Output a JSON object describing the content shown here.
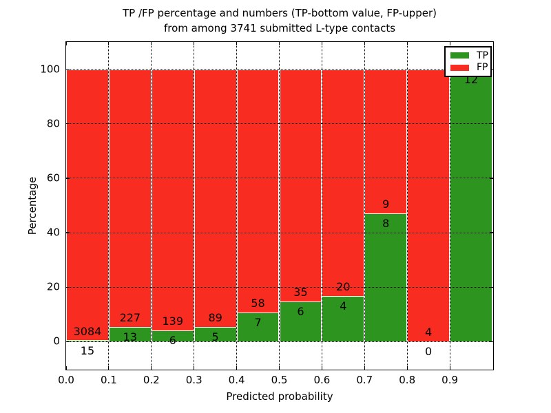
{
  "title": {
    "line1": "TP /FP percentage and numbers (TP-bottom value, FP-upper)",
    "line2": "from among 3741 submitted L-type contacts"
  },
  "axes": {
    "xlabel": "Predicted probability",
    "ylabel": "Percentage"
  },
  "legend": {
    "items": [
      {
        "label": "TP",
        "color": "#2D9420"
      },
      {
        "label": "FP",
        "color": "#F92C21"
      }
    ]
  },
  "colors": {
    "tp_bar": "#2D9420",
    "fp_bar": "#F92C21",
    "bar_edge": "#ffffff",
    "grid": "#000000",
    "text": "#000000"
  },
  "chart_data": {
    "type": "bar",
    "stacked": true,
    "normalized": "each bin scaled to 100%",
    "title": "TP /FP percentage and numbers (TP-bottom value, FP-upper) from among 3741 submitted L-type contacts",
    "xlabel": "Predicted probability",
    "ylabel": "Percentage",
    "xlim": [
      0.0,
      1.0
    ],
    "ylim": [
      -10,
      110
    ],
    "yticks": [
      0,
      20,
      40,
      60,
      80,
      100
    ],
    "xtick_labels": [
      "0.0",
      "0.1",
      "0.2",
      "0.3",
      "0.4",
      "0.5",
      "0.6",
      "0.7",
      "0.8",
      "0.9"
    ],
    "grid": "dotted, both axes",
    "legend_position": "upper right",
    "total_contacts": 3741,
    "bins": [
      {
        "x_range": [
          0.0,
          0.1
        ],
        "tp": 15,
        "fp": 3084
      },
      {
        "x_range": [
          0.1,
          0.2
        ],
        "tp": 13,
        "fp": 227
      },
      {
        "x_range": [
          0.2,
          0.3
        ],
        "tp": 6,
        "fp": 139
      },
      {
        "x_range": [
          0.3,
          0.4
        ],
        "tp": 5,
        "fp": 89
      },
      {
        "x_range": [
          0.4,
          0.5
        ],
        "tp": 7,
        "fp": 58
      },
      {
        "x_range": [
          0.5,
          0.6
        ],
        "tp": 6,
        "fp": 35
      },
      {
        "x_range": [
          0.6,
          0.7
        ],
        "tp": 4,
        "fp": 20
      },
      {
        "x_range": [
          0.7,
          0.8
        ],
        "tp": 8,
        "fp": 9
      },
      {
        "x_range": [
          0.8,
          0.9
        ],
        "tp": 0,
        "fp": 4
      },
      {
        "x_range": [
          0.9,
          1.0
        ],
        "tp": 12,
        "fp": 0,
        "fp_label_visible": false
      }
    ]
  }
}
